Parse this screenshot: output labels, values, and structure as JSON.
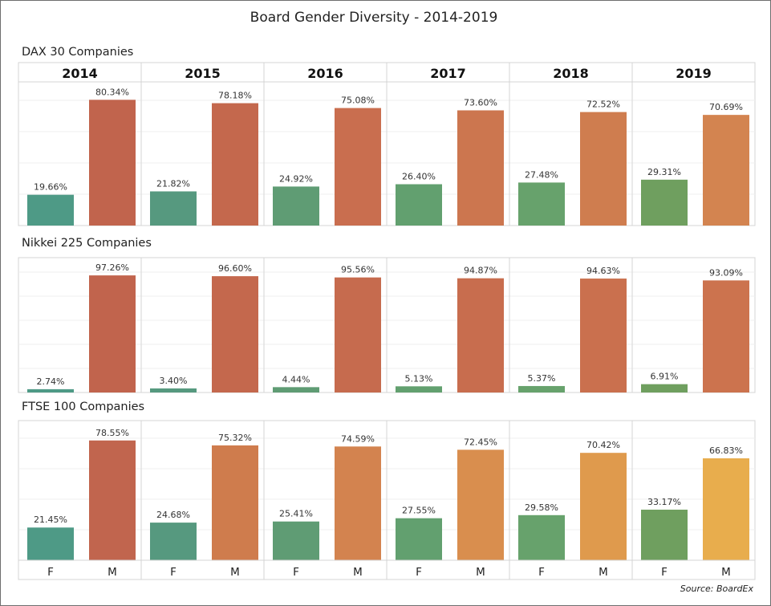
{
  "chart_title": "Board Gender Diversity - 2014-2019",
  "source": "Source: BoardEx",
  "colors": {
    "F": [
      "#4e9a86",
      "#56997f",
      "#5f9c74",
      "#62a06f",
      "#67a26c",
      "#6f9f5f"
    ],
    "M_dax": [
      "#c1644d",
      "#c4684d",
      "#c96e4f",
      "#cc764f",
      "#cf7d4f",
      "#d38450"
    ],
    "M_nikkei": [
      "#c1644d",
      "#c4684d",
      "#c66b4e",
      "#c86d4e",
      "#ca704e",
      "#cc734e"
    ],
    "M_ftse": [
      "#c1654e",
      "#cf7c4d",
      "#d3834f",
      "#d98e4e",
      "#df9a4d",
      "#e8ad4d"
    ]
  },
  "chart_data": {
    "type": "bar",
    "title": "Board Gender Diversity - 2014-2019",
    "years": [
      "2014",
      "2015",
      "2016",
      "2017",
      "2018",
      "2019"
    ],
    "categories": [
      "F",
      "M"
    ],
    "ylim": [
      0,
      100
    ],
    "grid": true,
    "panels": [
      {
        "name": "DAX 30 Companies",
        "F": [
          19.66,
          21.82,
          24.92,
          26.4,
          27.48,
          29.31
        ],
        "M": [
          80.34,
          78.18,
          75.08,
          73.6,
          72.52,
          70.69
        ],
        "F_labels": [
          "19.66%",
          "21.82%",
          "24.92%",
          "26.40%",
          "27.48%",
          "29.31%"
        ],
        "M_labels": [
          "80.34%",
          "78.18%",
          "75.08%",
          "73.60%",
          "72.52%",
          "70.69%"
        ]
      },
      {
        "name": "Nikkei 225 Companies",
        "F": [
          2.74,
          3.4,
          4.44,
          5.13,
          5.37,
          6.91
        ],
        "M": [
          97.26,
          96.6,
          95.56,
          94.87,
          94.63,
          93.09
        ],
        "F_labels": [
          "2.74%",
          "3.40%",
          "4.44%",
          "5.13%",
          "5.37%",
          "6.91%"
        ],
        "M_labels": [
          "97.26%",
          "96.60%",
          "95.56%",
          "94.87%",
          "94.63%",
          "93.09%"
        ]
      },
      {
        "name": "FTSE 100 Companies",
        "F": [
          21.45,
          24.68,
          25.41,
          27.55,
          29.58,
          33.17
        ],
        "M": [
          78.55,
          75.32,
          74.59,
          72.45,
          70.42,
          66.83
        ],
        "F_labels": [
          "21.45%",
          "24.68%",
          "25.41%",
          "27.55%",
          "29.58%",
          "33.17%"
        ],
        "M_labels": [
          "78.55%",
          "75.32%",
          "74.59%",
          "72.45%",
          "70.42%",
          "66.83%"
        ]
      }
    ]
  }
}
